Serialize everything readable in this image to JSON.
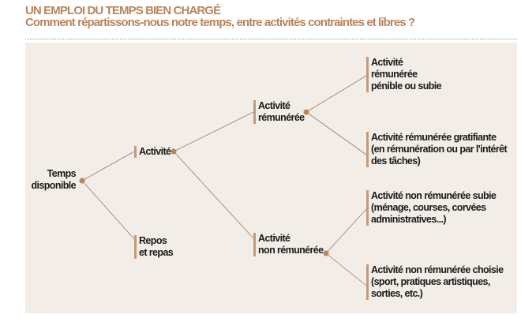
{
  "header": {
    "title": "UN EMPLOI DU TEMPS BIEN CHARGÉ",
    "subtitle": "Comment répartissons-nous notre temps, entre activités contraintes et libres ?"
  },
  "colors": {
    "accent": "#b8855e",
    "panel": "#f2ede7",
    "line": "#8f7f72"
  },
  "tree": {
    "root": [
      "Temps",
      "disponible"
    ],
    "activite": [
      "Activité"
    ],
    "repos": [
      "Repos",
      "et repas"
    ],
    "remuneree": [
      "Activité",
      "rémunérée"
    ],
    "non_remuneree": [
      "Activité",
      "non rémunérée"
    ],
    "leaf1": [
      "Activité",
      "rémunérée",
      "pénible ou subie"
    ],
    "leaf2": [
      "Activité rémunérée gratifiante",
      "(en rémunération ou par l'intérêt",
      "des tâches)"
    ],
    "leaf3": [
      "Activité non rémunérée subie",
      "(ménage, courses, corvées",
      "administratives...)"
    ],
    "leaf4": [
      "Activité non rémunérée choisie",
      "(sport, pratiques artistiques,",
      "sorties, etc.)"
    ]
  }
}
